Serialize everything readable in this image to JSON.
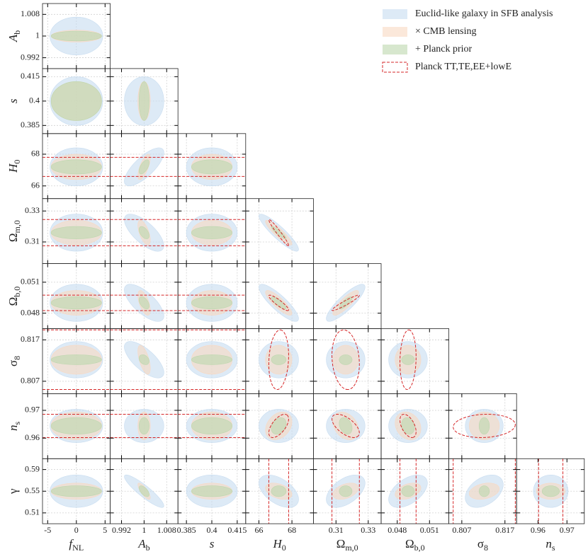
{
  "chart_data": {
    "type": "corner",
    "parameters": [
      {
        "label": {
          "symbol": "f",
          "sub": "NL"
        },
        "fiducial": 0,
        "lim": [
          -5.9,
          5.9
        ],
        "ticks": [
          -5,
          0,
          5
        ]
      },
      {
        "label": {
          "symbol": "A",
          "sub": "b"
        },
        "fiducial": 1,
        "lim": [
          0.988,
          1.012
        ],
        "ticks": [
          0.992,
          1,
          1.008
        ]
      },
      {
        "label": {
          "symbol": "s"
        },
        "fiducial": 0.4,
        "lim": [
          0.38,
          0.42
        ],
        "ticks": [
          0.385,
          0.4,
          0.415
        ]
      },
      {
        "label": {
          "symbol": "H",
          "sub": "0"
        },
        "fiducial": 67.2,
        "lim": [
          65.2,
          69.3
        ],
        "ticks": [
          66,
          68
        ]
      },
      {
        "label": {
          "symbol": "Ω",
          "sub": "m,0"
        },
        "fiducial": 0.316,
        "lim": [
          0.296,
          0.338
        ],
        "ticks": [
          0.31,
          0.33
        ]
      },
      {
        "label": {
          "symbol": "Ω",
          "sub": "b,0"
        },
        "fiducial": 0.049,
        "lim": [
          0.0465,
          0.0528
        ],
        "ticks": [
          0.048,
          0.051
        ]
      },
      {
        "label": {
          "symbol": "σ",
          "sub": "8"
        },
        "fiducial": 0.8122,
        "lim": [
          0.804,
          0.8197
        ],
        "ticks": [
          0.807,
          0.817
        ]
      },
      {
        "label": {
          "symbol": "n",
          "sub": "s"
        },
        "fiducial": 0.9644,
        "lim": [
          0.9526,
          0.976
        ],
        "ticks": [
          0.96,
          0.97
        ]
      },
      {
        "label": {
          "symbol": "γ"
        },
        "fiducial": 0.55,
        "lim": [
          0.49,
          0.61
        ],
        "ticks": [
          0.51,
          0.55,
          0.59
        ]
      }
    ],
    "series": [
      {
        "name": "Euclid-like galaxy in SFB analysis",
        "color": "#c7dcf0",
        "style": "filled",
        "sigma": [
          4.6,
          0.007,
          0.015,
          1.2,
          0.012,
          0.0018,
          0.0044,
          0.006,
          0.03
        ]
      },
      {
        "name": "× CMB lensing",
        "color": "#f9d8c2",
        "style": "filled",
        "sigma": [
          4.4,
          0.0022,
          0.012,
          0.8,
          0.008,
          0.0012,
          0.0035,
          0.005,
          0.015
        ]
      },
      {
        "name": "+ Planck prior",
        "color": "#bcd7ad",
        "style": "filled",
        "sigma": [
          4.4,
          0.0018,
          0.012,
          0.45,
          0.004,
          0.0006,
          0.0012,
          0.003,
          0.01
        ]
      },
      {
        "name": "Planck TT,TE,EE+lowE",
        "color": "#d62728",
        "style": "dashed",
        "sigma": [
          null,
          null,
          null,
          0.6,
          0.0085,
          0.00075,
          0.0072,
          0.0042,
          null
        ]
      }
    ],
    "correlations": [
      {
        "pair": [
          1,
          3
        ],
        "rho": [
          0.75,
          0.7,
          0.6,
          0
        ]
      },
      {
        "pair": [
          1,
          4
        ],
        "rho": [
          -0.7,
          -0.6,
          -0.5,
          0
        ]
      },
      {
        "pair": [
          1,
          5
        ],
        "rho": [
          -0.7,
          -0.6,
          -0.5,
          0
        ]
      },
      {
        "pair": [
          1,
          6
        ],
        "rho": [
          -0.7,
          -0.6,
          -0.3,
          0
        ]
      },
      {
        "pair": [
          1,
          8
        ],
        "rho": [
          -0.9,
          -0.8,
          -0.6,
          0
        ]
      },
      {
        "pair": [
          3,
          4
        ],
        "rho": [
          -0.9,
          -0.9,
          -0.9,
          -0.97
        ]
      },
      {
        "pair": [
          3,
          5
        ],
        "rho": [
          -0.85,
          -0.85,
          -0.8,
          -0.9
        ]
      },
      {
        "pair": [
          4,
          5
        ],
        "rho": [
          0.85,
          0.85,
          0.8,
          0.95
        ]
      },
      {
        "pair": [
          3,
          6
        ],
        "rho": [
          0,
          0,
          0,
          0.15
        ]
      },
      {
        "pair": [
          4,
          6
        ],
        "rho": [
          0,
          0,
          0,
          -0.15
        ]
      },
      {
        "pair": [
          5,
          6
        ],
        "rho": [
          0,
          0,
          0,
          0.1
        ]
      },
      {
        "pair": [
          3,
          7
        ],
        "rho": [
          0,
          0.3,
          0.3,
          0.6
        ]
      },
      {
        "pair": [
          4,
          7
        ],
        "rho": [
          0,
          -0.3,
          -0.3,
          -0.6
        ]
      },
      {
        "pair": [
          5,
          7
        ],
        "rho": [
          0,
          -0.2,
          -0.2,
          -0.5
        ]
      },
      {
        "pair": [
          6,
          7
        ],
        "rho": [
          0,
          0,
          0,
          0.1
        ]
      },
      {
        "pair": [
          3,
          8
        ],
        "rho": [
          -0.5,
          -0.4,
          0,
          0
        ]
      },
      {
        "pair": [
          4,
          8
        ],
        "rho": [
          0.5,
          0.4,
          0,
          0
        ]
      },
      {
        "pair": [
          5,
          8
        ],
        "rho": [
          0.5,
          0.4,
          0,
          0
        ]
      },
      {
        "pair": [
          6,
          8
        ],
        "rho": [
          0.4,
          0.3,
          0,
          0
        ]
      }
    ],
    "grid": true
  }
}
